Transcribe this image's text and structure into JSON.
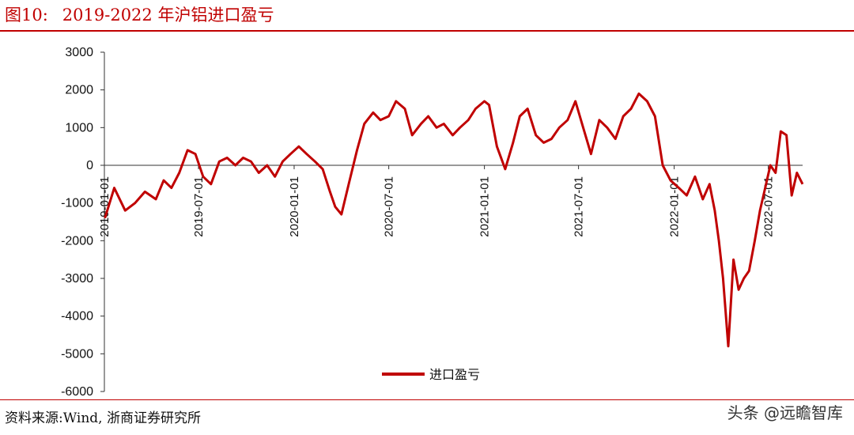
{
  "figure": {
    "number": "图10:",
    "title": "2019-2022 年沪铝进口盈亏"
  },
  "source": "资料来源:Wind, 浙商证券研究所",
  "watermark": "头条 @远瞻智库",
  "colors": {
    "accent": "#c00000",
    "line": "#c00000"
  },
  "chart_data": {
    "type": "line",
    "title": "",
    "xlabel": "",
    "ylabel": "",
    "ylim": [
      -6000,
      3000
    ],
    "yticks": [
      3000,
      2000,
      1000,
      0,
      -1000,
      -2000,
      -3000,
      -4000,
      -5000,
      -6000
    ],
    "xrange": [
      "2019-01-01",
      "2022-09-05"
    ],
    "xticks": [
      "2019-01-01",
      "2019-07-01",
      "2020-01-01",
      "2020-07-01",
      "2021-01-01",
      "2021-07-01",
      "2022-01-01",
      "2022-07-01"
    ],
    "grid": false,
    "legend": "bottom-center",
    "series": [
      {
        "name": "进口盈亏",
        "x": [
          "2019-01-02",
          "2019-01-20",
          "2019-02-10",
          "2019-03-01",
          "2019-03-20",
          "2019-04-10",
          "2019-04-25",
          "2019-05-10",
          "2019-05-25",
          "2019-06-10",
          "2019-06-25",
          "2019-07-10",
          "2019-07-25",
          "2019-08-10",
          "2019-08-25",
          "2019-09-10",
          "2019-09-25",
          "2019-10-10",
          "2019-10-25",
          "2019-11-10",
          "2019-11-25",
          "2019-12-10",
          "2019-12-25",
          "2020-01-10",
          "2020-01-25",
          "2020-02-10",
          "2020-02-25",
          "2020-03-10",
          "2020-03-20",
          "2020-04-01",
          "2020-04-15",
          "2020-05-01",
          "2020-05-15",
          "2020-06-01",
          "2020-06-15",
          "2020-07-01",
          "2020-07-15",
          "2020-08-01",
          "2020-08-15",
          "2020-09-01",
          "2020-09-15",
          "2020-10-01",
          "2020-10-15",
          "2020-11-01",
          "2020-11-15",
          "2020-12-01",
          "2020-12-15",
          "2021-01-01",
          "2021-01-10",
          "2021-01-25",
          "2021-02-10",
          "2021-02-25",
          "2021-03-10",
          "2021-03-25",
          "2021-04-10",
          "2021-04-25",
          "2021-05-10",
          "2021-05-25",
          "2021-06-10",
          "2021-06-25",
          "2021-07-10",
          "2021-07-25",
          "2021-08-10",
          "2021-08-25",
          "2021-09-10",
          "2021-09-25",
          "2021-10-10",
          "2021-10-25",
          "2021-11-10",
          "2021-11-25",
          "2021-12-10",
          "2021-12-25",
          "2022-01-10",
          "2022-01-25",
          "2022-02-10",
          "2022-02-25",
          "2022-03-10",
          "2022-03-20",
          "2022-03-28",
          "2022-04-05",
          "2022-04-15",
          "2022-04-25",
          "2022-05-05",
          "2022-05-15",
          "2022-05-25",
          "2022-06-05",
          "2022-06-15",
          "2022-06-25",
          "2022-07-05",
          "2022-07-15",
          "2022-07-25",
          "2022-08-05",
          "2022-08-15",
          "2022-08-25",
          "2022-09-05"
        ],
        "values": [
          -1400,
          -600,
          -1200,
          -1000,
          -700,
          -900,
          -400,
          -600,
          -200,
          400,
          300,
          -300,
          -500,
          100,
          200,
          0,
          200,
          100,
          -200,
          0,
          -300,
          100,
          300,
          500,
          300,
          100,
          -100,
          -700,
          -1100,
          -1300,
          -500,
          400,
          1100,
          1400,
          1200,
          1300,
          1700,
          1500,
          800,
          1100,
          1300,
          1000,
          1100,
          800,
          1000,
          1200,
          1500,
          1700,
          1600,
          500,
          -100,
          600,
          1300,
          1500,
          800,
          600,
          700,
          1000,
          1200,
          1700,
          1000,
          300,
          1200,
          1000,
          700,
          1300,
          1500,
          1900,
          1700,
          1300,
          0,
          -400,
          -600,
          -800,
          -300,
          -900,
          -500,
          -1200,
          -2000,
          -3000,
          -4800,
          -2500,
          -3300,
          -3000,
          -2800,
          -2000,
          -1200,
          -600,
          0,
          -200,
          900,
          800,
          -800,
          -200,
          -500
        ]
      }
    ]
  }
}
